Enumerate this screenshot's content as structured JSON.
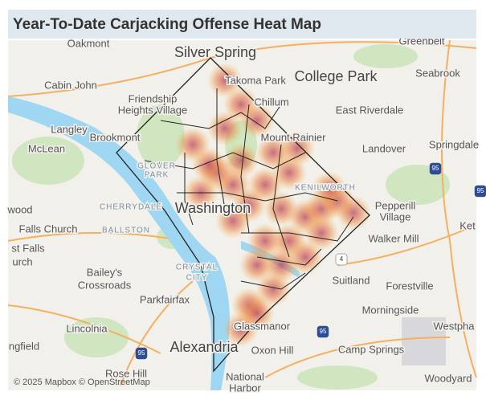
{
  "title": "Year-To-Date Carjacking Offense Heat Map",
  "map": {
    "labels": [
      "Oakmont",
      "Greenbelt",
      "Silver Spring",
      "Takoma Park",
      "College Park",
      "Seabrook",
      "Cabin John",
      "Chillum",
      "East Riverdale",
      "Friendship",
      "Heights Village",
      "Langley",
      "Brookmont",
      "Mount Rainier",
      "McLean",
      "Landover",
      "Springdale",
      "GLOVER",
      "PARK",
      "KENILWORTH",
      "Pepperill",
      "Village",
      "wood",
      "CHERRYDALE",
      "Washington",
      "Falls Church",
      "BALLSTON",
      "Walker Mill",
      "Ket",
      "st Falls",
      "urch",
      "Bailey's",
      "Crossroads",
      "CRYSTAL",
      "CITY",
      "Suitland",
      "Forestville",
      "Parkfairfax",
      "Morningside",
      "Westpha",
      "Lincolnia",
      "Glassmanor",
      "Alexandria",
      "Oxon Hill",
      "Camp Springs",
      "ngfield",
      "Rose Hill",
      "National",
      "Harbor",
      "Woodyard"
    ],
    "route_shields": [
      "95",
      "4",
      "95",
      "95",
      "95"
    ],
    "attribution": "© 2025 Mapbox © OpenStreetMap"
  }
}
